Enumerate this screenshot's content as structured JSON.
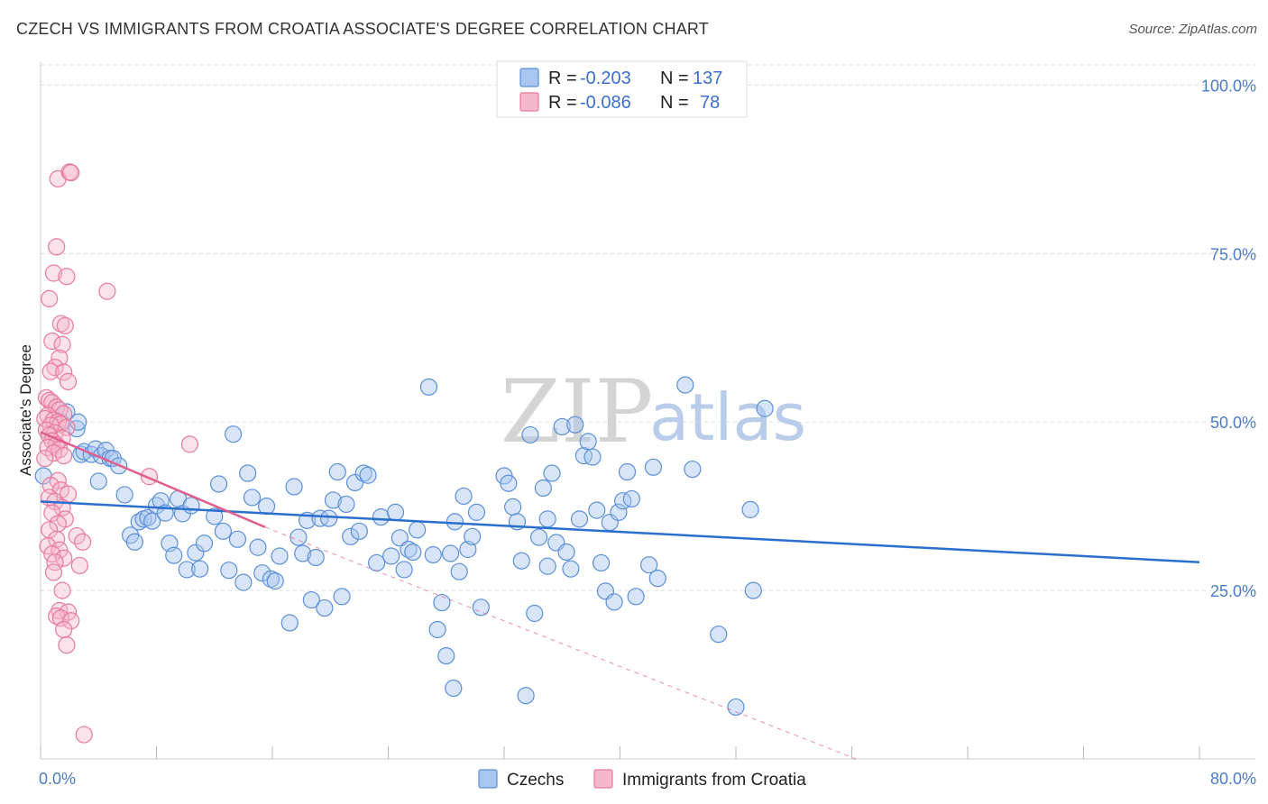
{
  "title": "CZECH VS IMMIGRANTS FROM CROATIA ASSOCIATE'S DEGREE CORRELATION CHART",
  "source": "Source: ZipAtlas.com",
  "watermark": {
    "zip": "ZIP",
    "atlas": "atlas"
  },
  "colors": {
    "czech_fill": "#a9c6f0",
    "czech_stroke": "#5b8fd9",
    "czech_line": "#2a6fce",
    "croatia_fill": "#f5b7cb",
    "croatia_stroke": "#e8799e",
    "croatia_line": "#e05f8c",
    "tick_text": "#4a7cc9",
    "grid": "#dddddd"
  },
  "legend": {
    "rows": [
      {
        "r_label": "R =",
        "r_value": "-0.203",
        "n_label": "N =",
        "n_value": "137"
      },
      {
        "r_label": "R =",
        "r_value": "-0.086",
        "n_label": "N =",
        "n_value": "78"
      }
    ]
  },
  "chart_data": {
    "type": "scatter",
    "title": "CZECH VS IMMIGRANTS FROM CROATIA ASSOCIATE'S DEGREE CORRELATION CHART",
    "xlabel": "",
    "ylabel": "Associate's Degree",
    "xlim": [
      0,
      80
    ],
    "ylim": [
      0,
      103
    ],
    "x_tick_labels": [
      "0.0%",
      "80.0%"
    ],
    "y_ticks": [
      25,
      50,
      75,
      100
    ],
    "y_tick_labels": [
      "25.0%",
      "50.0%",
      "75.0%",
      "100.0%"
    ],
    "grid": true,
    "legend_position": "top-center",
    "series": [
      {
        "name": "Czechs",
        "trend": {
          "x0": 0,
          "y0": 38.2,
          "x1": 80,
          "y1": 29.2
        },
        "points": [
          [
            0.2,
            42
          ],
          [
            1.4,
            50
          ],
          [
            1.8,
            51.5
          ],
          [
            2.5,
            49
          ],
          [
            2.8,
            45.2
          ],
          [
            2.6,
            50
          ],
          [
            3.0,
            45.6
          ],
          [
            3.5,
            45.2
          ],
          [
            3.8,
            46
          ],
          [
            4.2,
            45
          ],
          [
            4.5,
            45.8
          ],
          [
            4.8,
            44.6
          ],
          [
            5.0,
            44.6
          ],
          [
            5.4,
            43.5
          ],
          [
            4.0,
            41.2
          ],
          [
            5.8,
            39.2
          ],
          [
            6.2,
            33.2
          ],
          [
            6.5,
            32.2
          ],
          [
            6.8,
            35.2
          ],
          [
            7.1,
            35.6
          ],
          [
            7.4,
            35.8
          ],
          [
            7.7,
            35.3
          ],
          [
            8.0,
            37.6
          ],
          [
            8.3,
            38.3
          ],
          [
            8.6,
            36.5
          ],
          [
            8.9,
            32.0
          ],
          [
            9.2,
            30.2
          ],
          [
            9.5,
            38.6
          ],
          [
            9.8,
            36.4
          ],
          [
            10.1,
            28.1
          ],
          [
            10.4,
            37.6
          ],
          [
            10.7,
            30.6
          ],
          [
            11.0,
            28.2
          ],
          [
            11.3,
            32.0
          ],
          [
            12.0,
            36.0
          ],
          [
            12.3,
            40.8
          ],
          [
            12.6,
            33.8
          ],
          [
            13.0,
            28.0
          ],
          [
            13.3,
            48.2
          ],
          [
            13.6,
            32.6
          ],
          [
            14.0,
            26.2
          ],
          [
            14.3,
            42.4
          ],
          [
            14.6,
            38.8
          ],
          [
            15.0,
            31.4
          ],
          [
            15.3,
            27.6
          ],
          [
            15.6,
            37.5
          ],
          [
            15.9,
            26.7
          ],
          [
            16.2,
            26.4
          ],
          [
            16.5,
            30.1
          ],
          [
            17.2,
            20.2
          ],
          [
            17.5,
            40.4
          ],
          [
            17.8,
            32.9
          ],
          [
            18.1,
            30.5
          ],
          [
            18.4,
            35.4
          ],
          [
            18.7,
            23.6
          ],
          [
            19.0,
            29.9
          ],
          [
            19.3,
            35.7
          ],
          [
            19.6,
            22.4
          ],
          [
            19.9,
            35.7
          ],
          [
            20.2,
            38.4
          ],
          [
            20.5,
            42.6
          ],
          [
            20.8,
            24.1
          ],
          [
            21.1,
            37.8
          ],
          [
            21.4,
            33.0
          ],
          [
            21.7,
            41.0
          ],
          [
            22.0,
            33.8
          ],
          [
            22.3,
            42.4
          ],
          [
            22.6,
            42.1
          ],
          [
            23.2,
            29.1
          ],
          [
            23.5,
            35.9
          ],
          [
            24.2,
            30.1
          ],
          [
            24.5,
            36.6
          ],
          [
            24.8,
            32.8
          ],
          [
            25.1,
            28.1
          ],
          [
            25.4,
            31.1
          ],
          [
            25.7,
            30.7
          ],
          [
            26.0,
            34.0
          ],
          [
            26.8,
            55.2
          ],
          [
            27.1,
            30.3
          ],
          [
            27.4,
            19.2
          ],
          [
            27.7,
            23.2
          ],
          [
            28.0,
            15.3
          ],
          [
            28.3,
            30.5
          ],
          [
            28.6,
            35.2
          ],
          [
            28.9,
            27.8
          ],
          [
            29.2,
            39.0
          ],
          [
            29.5,
            31.1
          ],
          [
            29.8,
            33.0
          ],
          [
            30.1,
            36.6
          ],
          [
            30.4,
            22.5
          ],
          [
            32.0,
            42.0
          ],
          [
            32.3,
            40.9
          ],
          [
            32.6,
            37.4
          ],
          [
            32.9,
            35.2
          ],
          [
            33.2,
            29.4
          ],
          [
            33.5,
            9.4
          ],
          [
            33.8,
            48.1
          ],
          [
            34.1,
            21.6
          ],
          [
            34.4,
            32.9
          ],
          [
            34.7,
            40.2
          ],
          [
            35.0,
            35.6
          ],
          [
            35.3,
            42.4
          ],
          [
            35.6,
            32.1
          ],
          [
            36.0,
            49.3
          ],
          [
            36.3,
            30.7
          ],
          [
            36.6,
            28.2
          ],
          [
            36.9,
            49.6
          ],
          [
            37.2,
            35.6
          ],
          [
            37.5,
            45.0
          ],
          [
            37.8,
            47.1
          ],
          [
            38.1,
            44.8
          ],
          [
            38.4,
            36.9
          ],
          [
            38.7,
            29.1
          ],
          [
            39.0,
            24.9
          ],
          [
            39.3,
            35.1
          ],
          [
            39.6,
            23.3
          ],
          [
            39.9,
            36.6
          ],
          [
            40.2,
            38.3
          ],
          [
            40.5,
            42.6
          ],
          [
            40.8,
            38.6
          ],
          [
            41.1,
            24.1
          ],
          [
            42.0,
            28.8
          ],
          [
            42.3,
            43.3
          ],
          [
            42.6,
            26.8
          ],
          [
            44.5,
            55.5
          ],
          [
            45.0,
            43.0
          ],
          [
            46.8,
            18.5
          ],
          [
            48.0,
            7.7
          ],
          [
            49.0,
            37.0
          ],
          [
            49.2,
            25.0
          ],
          [
            50.0,
            52.0
          ],
          [
            28.5,
            10.5
          ],
          [
            35.0,
            28.6
          ]
        ]
      },
      {
        "name": "Immigrants from Croatia",
        "trend": {
          "x0": 0,
          "y0": 48.5,
          "x1": 15.5,
          "y1": 34.4
        },
        "trend_ext": {
          "x0": 15.5,
          "y0": 34.4,
          "x1": 80,
          "y1": -20
        },
        "points": [
          [
            1.2,
            86.1
          ],
          [
            2.0,
            87.1
          ],
          [
            2.1,
            87.0
          ],
          [
            1.1,
            76.0
          ],
          [
            0.9,
            72.1
          ],
          [
            1.8,
            71.6
          ],
          [
            0.6,
            68.3
          ],
          [
            4.6,
            69.4
          ],
          [
            1.4,
            64.6
          ],
          [
            1.7,
            64.3
          ],
          [
            0.8,
            62.0
          ],
          [
            1.5,
            61.5
          ],
          [
            1.3,
            59.5
          ],
          [
            1.0,
            58.1
          ],
          [
            0.7,
            57.5
          ],
          [
            1.6,
            57.4
          ],
          [
            1.9,
            56.0
          ],
          [
            0.4,
            53.6
          ],
          [
            0.6,
            53.2
          ],
          [
            0.8,
            52.9
          ],
          [
            1.1,
            52.2
          ],
          [
            1.3,
            51.8
          ],
          [
            1.6,
            51.2
          ],
          [
            0.5,
            51.0
          ],
          [
            0.3,
            50.5
          ],
          [
            0.9,
            50.3
          ],
          [
            1.2,
            50.0
          ],
          [
            1.4,
            49.7
          ],
          [
            0.7,
            49.5
          ],
          [
            1.8,
            49.2
          ],
          [
            0.4,
            48.8
          ],
          [
            1.0,
            48.4
          ],
          [
            0.6,
            48.0
          ],
          [
            1.5,
            47.6
          ],
          [
            0.8,
            47.2
          ],
          [
            1.1,
            46.6
          ],
          [
            0.5,
            46.2
          ],
          [
            1.3,
            45.9
          ],
          [
            0.9,
            45.4
          ],
          [
            1.6,
            45.0
          ],
          [
            0.3,
            44.6
          ],
          [
            10.3,
            46.7
          ],
          [
            7.5,
            41.9
          ],
          [
            1.2,
            41.3
          ],
          [
            0.7,
            40.6
          ],
          [
            1.4,
            39.9
          ],
          [
            1.9,
            39.3
          ],
          [
            0.6,
            38.8
          ],
          [
            1.0,
            38.2
          ],
          [
            1.5,
            37.3
          ],
          [
            0.8,
            36.5
          ],
          [
            1.7,
            35.6
          ],
          [
            1.2,
            34.9
          ],
          [
            0.6,
            34.0
          ],
          [
            2.5,
            33.1
          ],
          [
            1.1,
            32.6
          ],
          [
            2.9,
            32.2
          ],
          [
            0.5,
            31.6
          ],
          [
            1.3,
            31.0
          ],
          [
            0.8,
            30.4
          ],
          [
            1.6,
            29.8
          ],
          [
            1.0,
            29.2
          ],
          [
            2.7,
            28.7
          ],
          [
            0.9,
            27.7
          ],
          [
            1.5,
            25.0
          ],
          [
            1.3,
            22.0
          ],
          [
            1.9,
            21.8
          ],
          [
            1.1,
            21.2
          ],
          [
            1.4,
            20.9
          ],
          [
            2.1,
            20.5
          ],
          [
            1.6,
            19.2
          ],
          [
            1.8,
            16.9
          ],
          [
            3.0,
            3.6
          ]
        ]
      }
    ]
  },
  "bottom_legend": {
    "items": [
      "Czechs",
      "Immigrants from Croatia"
    ]
  }
}
